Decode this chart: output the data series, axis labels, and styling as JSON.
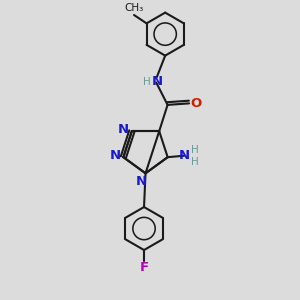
{
  "bg": "#dcdcdc",
  "bc": "#1a1a1a",
  "nc": "#1a1acc",
  "oc": "#cc2200",
  "fc": "#bb00bb",
  "hc": "#6a9a9a",
  "lw": 1.5,
  "fs": 9.5,
  "fs_s": 7.5,
  "xlim": [
    0,
    10
  ],
  "ylim": [
    0,
    10
  ]
}
